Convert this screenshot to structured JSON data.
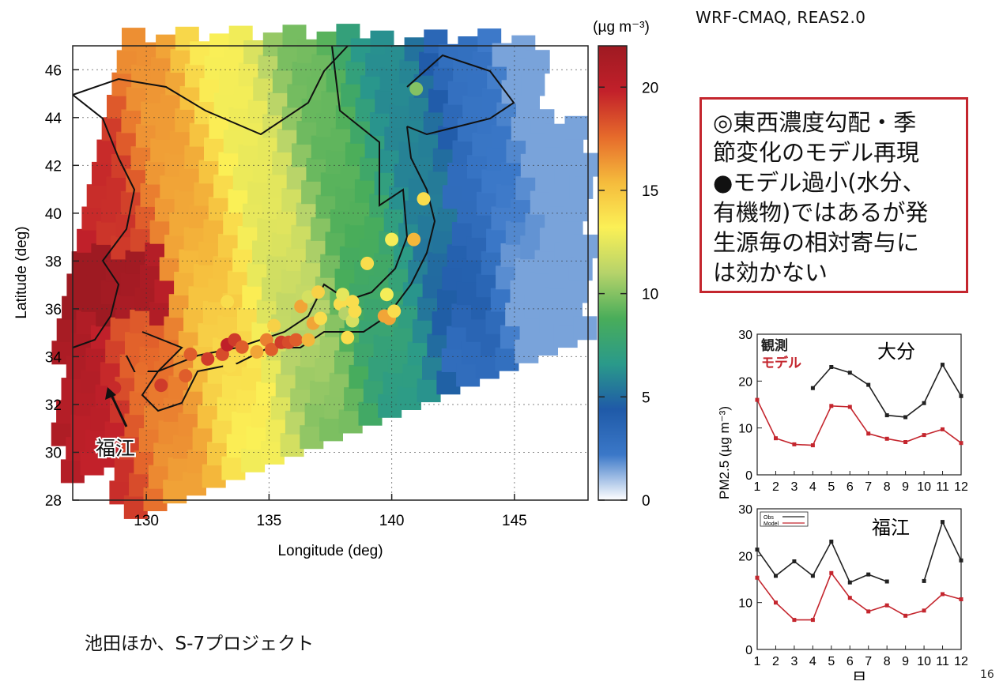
{
  "header": {
    "model_label": "WRF-CMAQ, REAS2.0",
    "colorbar_unit": "(µg m⁻³)"
  },
  "callout": {
    "lines": [
      "◎東西濃度勾配・季",
      "節変化のモデル再現",
      "●モデル過小(水分、",
      "有機物)ではあるが発",
      "生源毎の相対寄与に",
      "は効かない"
    ],
    "border_color": "#c4262e"
  },
  "credit": "池田ほか、S-7プロジェクト",
  "page_number": "16",
  "chart_data": [
    {
      "type": "heatmap",
      "title": "",
      "xlabel": "Longitude (deg)",
      "ylabel": "Latitude (deg)",
      "xlim": [
        127,
        148
      ],
      "ylim": [
        28,
        47
      ],
      "xticks": [
        130,
        135,
        140,
        145
      ],
      "yticks": [
        28,
        30,
        32,
        34,
        36,
        38,
        40,
        42,
        44,
        46
      ],
      "grid": true,
      "colorbar": {
        "min": 0,
        "max": 22,
        "ticks": [
          0,
          5,
          10,
          15,
          20
        ],
        "unit": "(µg m⁻³)",
        "colors": [
          "#ffffff",
          "#3b78c8",
          "#1f5aa8",
          "#2a9a8a",
          "#49ad5a",
          "#b6d36a",
          "#fbf056",
          "#f5bb3c",
          "#e66a2b",
          "#c2202a",
          "#9e1a22"
        ]
      },
      "stations": [
        {
          "lon": 128.7,
          "lat": 32.7,
          "value": 19.5
        },
        {
          "lon": 129.8,
          "lat": 33.5,
          "value": 17.5
        },
        {
          "lon": 130.6,
          "lat": 32.8,
          "value": 19
        },
        {
          "lon": 131.6,
          "lat": 33.2,
          "value": 18
        },
        {
          "lon": 131.8,
          "lat": 34.1,
          "value": 18
        },
        {
          "lon": 132.5,
          "lat": 33.9,
          "value": 19
        },
        {
          "lon": 133.1,
          "lat": 34.1,
          "value": 18.5
        },
        {
          "lon": 133.3,
          "lat": 34.5,
          "value": 20
        },
        {
          "lon": 133.6,
          "lat": 34.7,
          "value": 19
        },
        {
          "lon": 133.9,
          "lat": 34.4,
          "value": 18
        },
        {
          "lon": 133.4,
          "lat": 33.6,
          "value": 14
        },
        {
          "lon": 133.3,
          "lat": 36.3,
          "value": 14
        },
        {
          "lon": 134.5,
          "lat": 34.2,
          "value": 16
        },
        {
          "lon": 134.9,
          "lat": 34.7,
          "value": 17
        },
        {
          "lon": 135.1,
          "lat": 34.3,
          "value": 18
        },
        {
          "lon": 135.2,
          "lat": 35.3,
          "value": 14.5
        },
        {
          "lon": 135.5,
          "lat": 34.6,
          "value": 19
        },
        {
          "lon": 135.8,
          "lat": 34.6,
          "value": 18.5
        },
        {
          "lon": 136.1,
          "lat": 34.7,
          "value": 18
        },
        {
          "lon": 136.3,
          "lat": 36.1,
          "value": 16
        },
        {
          "lon": 136.6,
          "lat": 36.5,
          "value": 12
        },
        {
          "lon": 136.6,
          "lat": 34.7,
          "value": 15.5
        },
        {
          "lon": 136.8,
          "lat": 35.4,
          "value": 16
        },
        {
          "lon": 137.0,
          "lat": 36.7,
          "value": 14.5
        },
        {
          "lon": 137.1,
          "lat": 35.6,
          "value": 14
        },
        {
          "lon": 137.9,
          "lat": 36.2,
          "value": 14
        },
        {
          "lon": 138.0,
          "lat": 36.6,
          "value": 12.5
        },
        {
          "lon": 138.1,
          "lat": 35.8,
          "value": 11
        },
        {
          "lon": 138.2,
          "lat": 34.8,
          "value": 14
        },
        {
          "lon": 138.4,
          "lat": 35.5,
          "value": 12
        },
        {
          "lon": 138.4,
          "lat": 36.3,
          "value": 14
        },
        {
          "lon": 138.5,
          "lat": 35.9,
          "value": 14
        },
        {
          "lon": 139.0,
          "lat": 37.9,
          "value": 14
        },
        {
          "lon": 139.7,
          "lat": 35.7,
          "value": 16
        },
        {
          "lon": 139.8,
          "lat": 36.6,
          "value": 13
        },
        {
          "lon": 139.9,
          "lat": 35.6,
          "value": 16
        },
        {
          "lon": 140.0,
          "lat": 38.9,
          "value": 13
        },
        {
          "lon": 140.1,
          "lat": 35.9,
          "value": 14
        },
        {
          "lon": 140.9,
          "lat": 38.9,
          "value": 15.5
        },
        {
          "lon": 141.3,
          "lat": 40.6,
          "value": 14
        },
        {
          "lon": 141.0,
          "lat": 45.2,
          "value": 10
        }
      ],
      "annotations": [
        "福江"
      ]
    },
    {
      "type": "line",
      "title": "大分",
      "ylabel": "PM2.5 (µg m⁻³)",
      "ylim": [
        0,
        30
      ],
      "yticks": [
        0,
        10,
        20,
        30
      ],
      "x": [
        1,
        2,
        3,
        4,
        5,
        6,
        7,
        8,
        9,
        10,
        11,
        12
      ],
      "legend_position": "top-left",
      "series": [
        {
          "name": "観測",
          "color": "#222222",
          "values": [
            null,
            null,
            null,
            18.5,
            23,
            21.8,
            19.2,
            12.7,
            12.3,
            15.3,
            23.5,
            16.8
          ]
        },
        {
          "name": "モデル",
          "color": "#c4262e",
          "values": [
            16,
            7.8,
            6.5,
            6.3,
            14.7,
            14.5,
            8.8,
            7.7,
            7,
            8.5,
            9.7,
            6.8
          ]
        }
      ]
    },
    {
      "type": "line",
      "title": "福江",
      "xlabel": "月",
      "ylim": [
        0,
        30
      ],
      "yticks": [
        0,
        10,
        20,
        30
      ],
      "x": [
        1,
        2,
        3,
        4,
        5,
        6,
        7,
        8,
        9,
        10,
        11,
        12
      ],
      "legend_position": "top-left",
      "series": [
        {
          "name": "Obs",
          "color": "#222222",
          "values": [
            21.3,
            15.7,
            18.8,
            15.7,
            23,
            14.3,
            16,
            14.5,
            null,
            14.6,
            27.2,
            19
          ]
        },
        {
          "name": "Model",
          "color": "#c4262e",
          "values": [
            15.3,
            10,
            6.3,
            6.3,
            16.3,
            11,
            8.1,
            9.4,
            7.2,
            8.3,
            11.8,
            10.7
          ]
        }
      ]
    }
  ]
}
